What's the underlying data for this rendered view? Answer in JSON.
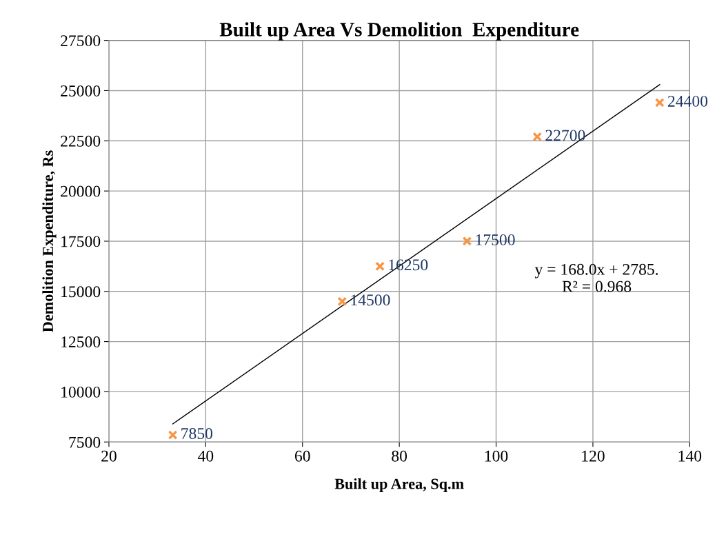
{
  "chart_data": {
    "type": "scatter",
    "title": "Built up Area Vs Demolition  Expenditure",
    "xlabel": "Built up Area, Sq.m",
    "ylabel": "Demolition Expenditure, Rs",
    "xlim": [
      20,
      140
    ],
    "xticks": [
      20,
      40,
      60,
      80,
      100,
      120,
      140
    ],
    "ylim": [
      7500,
      27500
    ],
    "yticks": [
      7500,
      10000,
      12500,
      15000,
      17500,
      20000,
      22500,
      25000,
      27500
    ],
    "grid": true,
    "series": [
      {
        "marker": "cross",
        "color": "#f79646",
        "x": [
          33.2,
          68.2,
          76,
          94,
          108.5,
          133.8
        ],
        "values": [
          7850,
          14500,
          16250,
          17500,
          22700,
          24400
        ],
        "data_labels": true
      },
      {
        "type": "line",
        "color": "#000000",
        "x": [
          33.2,
          133.8
        ],
        "values": [
          8400,
          25300
        ]
      }
    ],
    "annotations": [
      "y = 168.0x + 2785.\nR² = 0.968"
    ]
  }
}
